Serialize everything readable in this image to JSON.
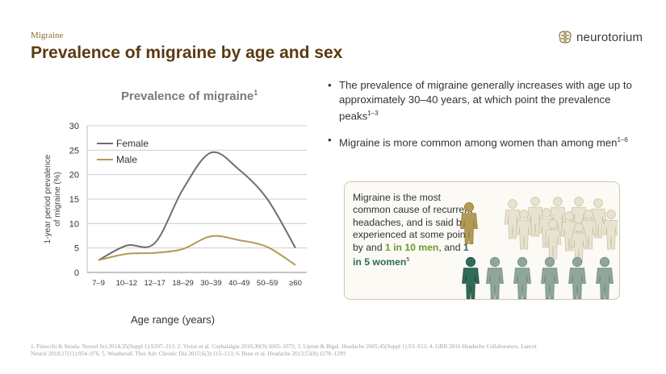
{
  "header": {
    "section": "Migraine",
    "title": "Prevalence of migraine by age and sex",
    "logo_text": "neurotorium"
  },
  "chart_heading": {
    "text": "Prevalence of migraine",
    "sup": "1"
  },
  "chart_data": {
    "type": "line",
    "title": "Prevalence of migraine",
    "categories": [
      "7–9",
      "10–12",
      "12–17",
      "18–29",
      "30–39",
      "40–49",
      "50–59",
      "≥60"
    ],
    "series": [
      {
        "name": "Female",
        "values": [
          2.5,
          5.5,
          6,
          17,
          24.5,
          21,
          15,
          5
        ],
        "color": "#6e6e6e"
      },
      {
        "name": "Male",
        "values": [
          2.5,
          3.8,
          4,
          4.8,
          7.4,
          6.6,
          5.2,
          1.5
        ],
        "color": "#b39a55"
      }
    ],
    "xlabel": "Age range (years)",
    "ylabel": "1-year period prevalence of migraine (%)",
    "ylabel_lines": [
      "1-year period prevalence",
      "of migraine (%)"
    ],
    "ylim": [
      0,
      30
    ],
    "yticks": [
      "0",
      "5",
      "10",
      "15",
      "20",
      "25",
      "30"
    ],
    "grid": true,
    "legend": "top-left"
  },
  "bullets": [
    {
      "text": "The prevalence of migraine generally increases with age up to approximately 30–40 years, at which point the prevalence peaks",
      "sup": "1–3"
    },
    {
      "text": "Migraine is more common among women than among men",
      "sup": "1–6"
    }
  ],
  "callout": {
    "text_before": "Migraine is the most common cause of recurrent headaches, and is said be experienced at some point by and ",
    "highlight_men": "1 in 10 men",
    "text_mid": ", and ",
    "highlight_women": "1 in 5 women",
    "sup": "5"
  },
  "colors": {
    "female": "#6e6e6e",
    "male": "#b39a55",
    "men_highlight": "#6d9a2a",
    "women_highlight": "#2e6b58",
    "figure_light": "#e8e2d0",
    "figure_women": "#8fa69c"
  },
  "footnote": "1. Finocchi & Strada. Neurol Sci 2014;35(Suppl 1):S207–213; 2. Victor et al. Cephalalgia 2010;30(9):1065–1072; 3. Lipton & Bigal. Headache 2005;45(Suppl 1):S3–S13; 4. GBD 2016 Headache Collaborators. Lancet Neurol 2018;17(11):954–976; 5. Weatherall. Ther Adv Chronic Dis 2015;6(3):115–123; 6. Buse et al. Headache 2013;53(8):1278–1299"
}
